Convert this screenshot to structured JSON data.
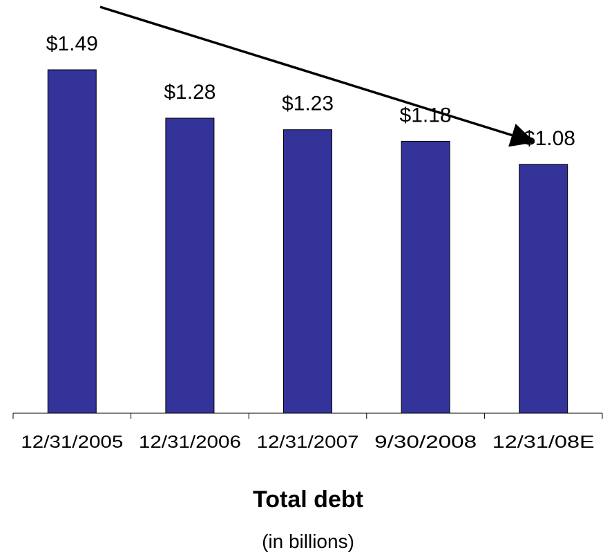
{
  "chart_data": {
    "type": "bar",
    "categories": [
      "12/31/2005",
      "12/31/2006",
      "12/31/2007",
      "9/30/2008",
      "12/31/08E"
    ],
    "values": [
      1.49,
      1.28,
      1.23,
      1.18,
      1.08
    ],
    "value_labels": [
      "$1.49",
      "$1.28",
      "$1.23",
      "$1.18",
      "<$1.08"
    ],
    "title": "Total debt",
    "subtitle": "(in billions)",
    "xlabel": "",
    "ylabel": "",
    "ylim": [
      0,
      1.49
    ],
    "grid": false,
    "legend": "none",
    "bar_color": "#333399",
    "trend_arrow": {
      "direction": "down",
      "color": "#000000"
    }
  }
}
